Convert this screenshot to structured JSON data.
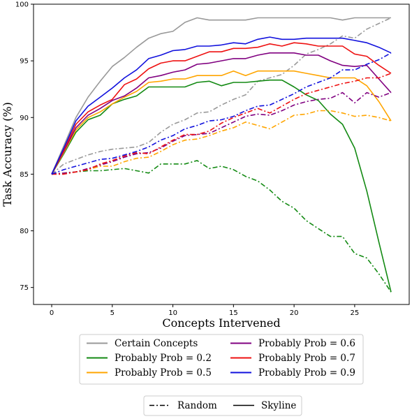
{
  "chart_data": {
    "type": "line",
    "xlabel": "Concepts Intervened",
    "ylabel": "Task Accuracy (%)",
    "xlim": [
      -1.5,
      29.5
    ],
    "ylim": [
      73.5,
      100
    ],
    "xticks": [
      0,
      5,
      10,
      15,
      20,
      25
    ],
    "yticks": [
      75,
      80,
      85,
      90,
      95,
      100
    ],
    "x": [
      0,
      1,
      2,
      3,
      4,
      5,
      6,
      7,
      8,
      9,
      10,
      11,
      12,
      13,
      14,
      15,
      16,
      17,
      18,
      19,
      20,
      21,
      22,
      23,
      24,
      25,
      26,
      27,
      28
    ],
    "grid": false,
    "series": [
      {
        "name": "Certain Concepts",
        "color": "#999999",
        "style": "solid",
        "values": [
          85,
          87.5,
          90,
          91.8,
          93.2,
          94.5,
          95.3,
          96.2,
          97.0,
          97.4,
          97.6,
          98.4,
          98.8,
          98.6,
          98.6,
          98.6,
          98.6,
          98.8,
          98.8,
          98.8,
          98.8,
          98.8,
          98.8,
          98.8,
          98.6,
          98.8,
          98.8,
          98.8,
          98.8
        ]
      },
      {
        "name": "Certain Concepts",
        "color": "#999999",
        "style": "dashdot",
        "values": [
          85,
          85.9,
          86.3,
          86.7,
          87.0,
          87.2,
          87.3,
          87.4,
          87.8,
          88.7,
          89.4,
          89.8,
          90.4,
          90.5,
          91.1,
          91.6,
          92.0,
          93.2,
          93.5,
          93.8,
          94.6,
          95.6,
          96.0,
          96.5,
          97.2,
          97.0,
          97.8,
          98.3,
          98.8
        ]
      },
      {
        "name": "Probably Prob = 0.2",
        "color": "#138a13",
        "style": "solid",
        "values": [
          85,
          86.8,
          88.7,
          89.8,
          90.2,
          91.2,
          91.6,
          91.9,
          92.7,
          92.7,
          92.7,
          92.7,
          93.1,
          93.2,
          92.8,
          93.1,
          93.1,
          93.2,
          93.3,
          93.3,
          92.7,
          92.0,
          91.5,
          90.3,
          89.4,
          87.3,
          83.5,
          79.0,
          74.6
        ]
      },
      {
        "name": "Probably Prob = 0.2",
        "color": "#138a13",
        "style": "dashdot",
        "values": [
          85,
          85.1,
          85.2,
          85.3,
          85.3,
          85.4,
          85.5,
          85.3,
          85.1,
          85.9,
          85.9,
          85.9,
          86.2,
          85.5,
          85.7,
          85.4,
          84.8,
          84.4,
          83.6,
          82.6,
          82.0,
          80.9,
          80.2,
          79.5,
          79.5,
          78.0,
          77.6,
          76.2,
          74.6
        ]
      },
      {
        "name": "Probably Prob = 0.5",
        "color": "#ffa500",
        "style": "solid",
        "values": [
          85,
          86.9,
          88.9,
          90.0,
          90.5,
          91.2,
          91.8,
          92.3,
          93.1,
          93.2,
          93.4,
          93.4,
          93.7,
          93.7,
          93.7,
          94.1,
          93.7,
          94.1,
          94.1,
          94.1,
          94.1,
          93.9,
          93.7,
          93.5,
          93.5,
          93.5,
          92.8,
          91.4,
          89.7
        ]
      },
      {
        "name": "Probably Prob = 0.5",
        "color": "#ffa500",
        "style": "dashdot",
        "values": [
          85,
          85.1,
          85.2,
          85.4,
          85.7,
          85.7,
          86.1,
          86.4,
          86.5,
          87.0,
          87.6,
          88.0,
          88.1,
          88.4,
          88.8,
          89.1,
          89.6,
          89.3,
          89.0,
          89.6,
          90.2,
          90.3,
          90.6,
          90.6,
          90.4,
          90.1,
          90.2,
          90.0,
          89.7
        ]
      },
      {
        "name": "Probably Prob = 0.6",
        "color": "#800080",
        "style": "solid",
        "values": [
          85,
          87.0,
          89.1,
          90.2,
          90.8,
          91.5,
          91.9,
          92.6,
          93.5,
          93.7,
          94.0,
          94.2,
          94.7,
          94.8,
          95.0,
          95.2,
          95.2,
          95.5,
          95.7,
          95.7,
          95.7,
          95.5,
          95.5,
          95.0,
          94.6,
          94.5,
          94.6,
          93.4,
          92.2
        ]
      },
      {
        "name": "Probably Prob = 0.6",
        "color": "#800080",
        "style": "dashdot",
        "values": [
          85,
          85.1,
          85.2,
          85.5,
          85.8,
          86.1,
          86.5,
          86.8,
          86.9,
          87.3,
          87.9,
          88.4,
          88.5,
          88.6,
          89.1,
          89.6,
          90.1,
          90.3,
          90.2,
          90.6,
          91.1,
          91.4,
          91.6,
          91.7,
          92.2,
          91.3,
          92.2,
          91.8,
          92.2
        ]
      },
      {
        "name": "Probably Prob = 0.7",
        "color": "#ee1111",
        "style": "solid",
        "values": [
          85,
          87.1,
          89.4,
          90.5,
          91.1,
          91.6,
          92.9,
          93.4,
          94.3,
          94.8,
          95.0,
          95.0,
          95.4,
          95.8,
          95.8,
          96.1,
          96.1,
          96.2,
          96.5,
          96.3,
          96.6,
          96.5,
          96.3,
          96.3,
          96.3,
          95.6,
          95.4,
          94.6,
          93.9
        ]
      },
      {
        "name": "Probably Prob = 0.7",
        "color": "#ee1111",
        "style": "dashdot",
        "values": [
          85,
          85.0,
          85.2,
          85.4,
          85.9,
          86.2,
          86.6,
          86.9,
          86.8,
          87.4,
          88.0,
          88.5,
          88.5,
          88.8,
          89.5,
          90.0,
          90.4,
          90.8,
          90.4,
          91.0,
          91.6,
          92.1,
          92.4,
          92.7,
          93.0,
          93.2,
          93.5,
          93.5,
          93.9
        ]
      },
      {
        "name": "Probably Prob = 0.9",
        "color": "#1111dd",
        "style": "solid",
        "values": [
          85,
          87.3,
          89.7,
          91.0,
          91.8,
          92.6,
          93.5,
          94.2,
          95.2,
          95.5,
          95.9,
          96.0,
          96.3,
          96.3,
          96.4,
          96.6,
          96.5,
          96.9,
          97.1,
          96.9,
          96.9,
          97.0,
          97.0,
          97.0,
          97.0,
          96.8,
          96.6,
          96.2,
          95.7
        ]
      },
      {
        "name": "Probably Prob = 0.9",
        "color": "#1111dd",
        "style": "dashdot",
        "values": [
          85,
          85.4,
          85.7,
          86.0,
          86.3,
          86.4,
          86.7,
          87.0,
          87.4,
          88.0,
          88.4,
          89.0,
          89.3,
          89.7,
          89.8,
          90.1,
          90.6,
          91.0,
          91.1,
          91.6,
          92.1,
          92.7,
          93.1,
          93.5,
          94.2,
          94.2,
          94.7,
          95.1,
          95.7
        ]
      }
    ],
    "legend": {
      "placement": "below-plot",
      "entries": [
        {
          "label": "Certain Concepts",
          "color": "#999999"
        },
        {
          "label": "Probably Prob = 0.2",
          "color": "#138a13"
        },
        {
          "label": "Probably Prob = 0.5",
          "color": "#ffa500"
        },
        {
          "label": "Probably Prob = 0.6",
          "color": "#800080"
        },
        {
          "label": "Probably Prob = 0.7",
          "color": "#ee1111"
        },
        {
          "label": "Probably Prob = 0.9",
          "color": "#1111dd"
        }
      ],
      "style_entries": [
        {
          "label": "Random",
          "style": "dashdot"
        },
        {
          "label": "Skyline",
          "style": "solid"
        }
      ]
    }
  }
}
